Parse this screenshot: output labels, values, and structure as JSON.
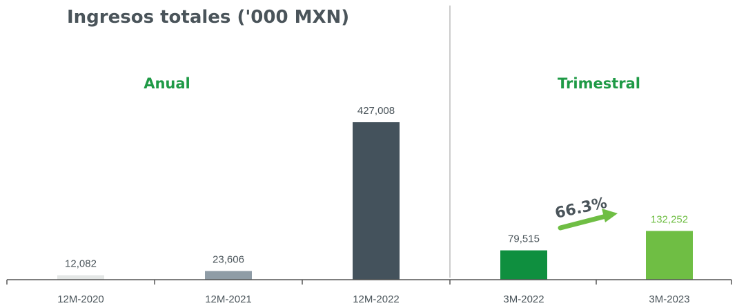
{
  "chart_data": {
    "type": "bar",
    "title": "Ingresos totales ('000 MXN)",
    "groups": [
      {
        "label": "Anual",
        "categories": [
          "12M-2020",
          "12M-2021",
          "12M-2022"
        ],
        "values": [
          12082,
          23606,
          427008
        ],
        "value_labels": [
          "12,082",
          "23,606",
          "427,008"
        ],
        "colors": [
          "#e4e7e6",
          "#8f9ca6",
          "#44525c"
        ]
      },
      {
        "label": "Trimestral",
        "categories": [
          "3M-2022",
          "3M-2023"
        ],
        "values": [
          79515,
          132252
        ],
        "value_labels": [
          "79,515",
          "132,252"
        ],
        "colors": [
          "#0f8f3f",
          "#6fbe44"
        ]
      }
    ],
    "annotation": {
      "text": "66.3%",
      "color": "#6fbe44"
    },
    "value_label_colors": {
      "default": "#4a545a",
      "highlight": "#6fbe44"
    },
    "section_label_color": "#1f9a46",
    "axis_color": "#555555",
    "grid": false,
    "ylim": [
      0,
      427008
    ]
  }
}
